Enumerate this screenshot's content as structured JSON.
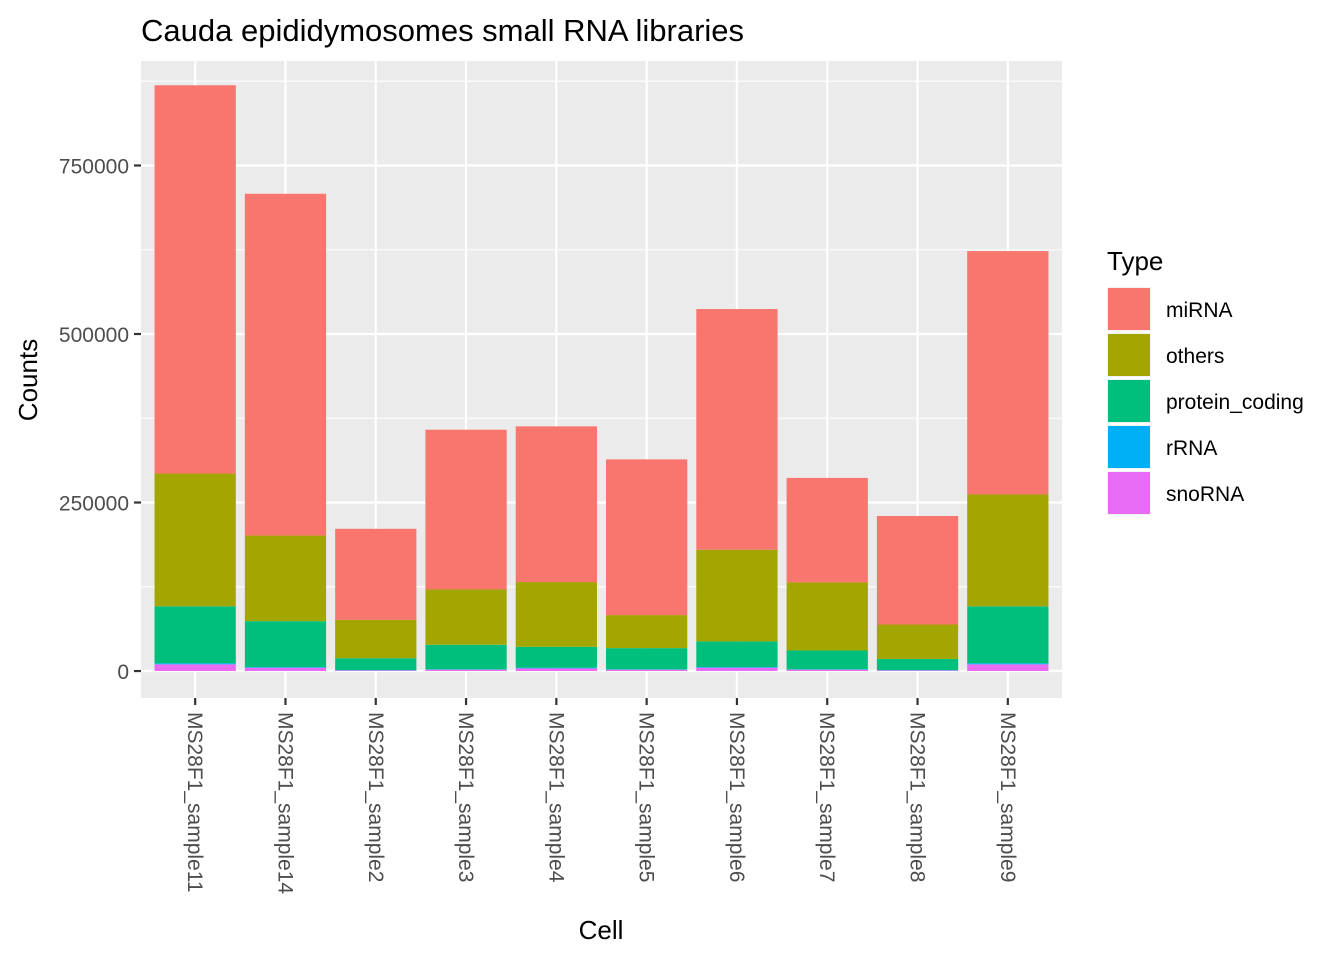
{
  "chart_data": {
    "type": "bar",
    "stacked": true,
    "title": "Cauda epididymosomes small RNA libraries",
    "xlabel": "Cell",
    "ylabel": "Counts",
    "ylim": [
      -40000,
      905000
    ],
    "yticks": [
      0,
      250000,
      500000,
      750000
    ],
    "ytick_labels": [
      "0",
      "250000",
      "500000",
      "750000"
    ],
    "grid": true,
    "legend": {
      "title": "Type",
      "position": "right"
    },
    "categories": [
      "MS28F1_sample11",
      "MS28F1_sample14",
      "MS28F1_sample2",
      "MS28F1_sample3",
      "MS28F1_sample4",
      "MS28F1_sample5",
      "MS28F1_sample6",
      "MS28F1_sample7",
      "MS28F1_sample8",
      "MS28F1_sample9"
    ],
    "series": [
      {
        "name": "snoRNA",
        "color": "#E76BF3",
        "values": [
          10000,
          5000,
          1000,
          2000,
          4000,
          2000,
          5000,
          2000,
          1000,
          10000
        ]
      },
      {
        "name": "rRNA",
        "color": "#00B0F6",
        "values": [
          1500,
          1000,
          500,
          500,
          1000,
          500,
          1000,
          500,
          500,
          1500
        ]
      },
      {
        "name": "protein_coding",
        "color": "#00BF7D",
        "values": [
          84500,
          68000,
          17500,
          36500,
          31000,
          31500,
          38000,
          28000,
          16500,
          84500
        ]
      },
      {
        "name": "others",
        "color": "#A3A500",
        "values": [
          197000,
          127000,
          57000,
          82000,
          96000,
          49000,
          136000,
          101000,
          51000,
          166000
        ]
      },
      {
        "name": "miRNA",
        "color": "#F8766D",
        "values": [
          576000,
          507000,
          135000,
          237000,
          231000,
          231000,
          357000,
          155000,
          161000,
          361000
        ]
      }
    ],
    "legend_order": [
      "miRNA",
      "others",
      "protein_coding",
      "rRNA",
      "snoRNA"
    ]
  }
}
